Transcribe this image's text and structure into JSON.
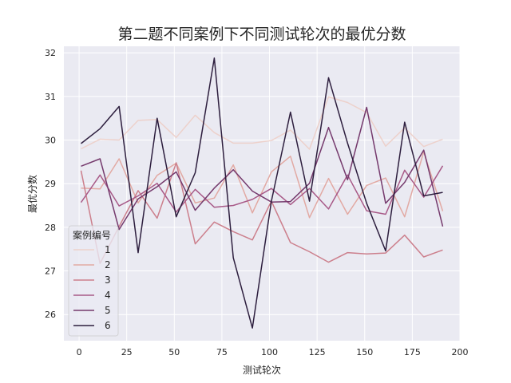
{
  "chart_data": {
    "type": "line",
    "title": "第二题不同案例下不同测试轮次的最优分数",
    "xlabel": "测试轮次",
    "ylabel": "最优分数",
    "xlim": [
      -8,
      200
    ],
    "ylim": [
      25.4,
      32.15
    ],
    "xticks": [
      0,
      25,
      50,
      75,
      100,
      125,
      150,
      175,
      200
    ],
    "yticks": [
      26,
      27,
      28,
      29,
      30,
      31,
      32
    ],
    "grid": true,
    "legend": {
      "title": "案例编号",
      "placement": "lower-left"
    },
    "x": [
      1,
      11,
      21,
      31,
      41,
      51,
      61,
      71,
      81,
      91,
      101,
      111,
      121,
      131,
      141,
      151,
      161,
      171,
      181,
      191
    ],
    "series": [
      {
        "name": "1",
        "color": "#edd1cb",
        "values": [
          29.8,
          30.02,
          30.0,
          30.45,
          30.47,
          30.06,
          30.57,
          30.17,
          29.93,
          29.93,
          29.99,
          30.23,
          29.79,
          30.99,
          30.86,
          30.63,
          29.86,
          30.28,
          29.85,
          30.02
        ]
      },
      {
        "name": "2",
        "color": "#e2a9a3",
        "values": [
          28.9,
          28.88,
          29.57,
          28.56,
          29.19,
          29.47,
          28.56,
          28.67,
          29.43,
          28.33,
          29.27,
          29.63,
          28.22,
          29.12,
          28.3,
          28.96,
          29.13,
          28.24,
          29.73,
          28.37
        ]
      },
      {
        "name": "3",
        "color": "#cc7f8c",
        "values": [
          29.3,
          27.17,
          28.02,
          28.84,
          28.21,
          29.48,
          27.62,
          28.12,
          27.9,
          27.71,
          28.6,
          27.65,
          27.44,
          27.2,
          27.42,
          27.39,
          27.41,
          27.82,
          27.32,
          27.48
        ]
      },
      {
        "name": "4",
        "color": "#a85a88",
        "values": [
          28.57,
          29.2,
          28.49,
          28.72,
          29.01,
          28.35,
          28.87,
          28.46,
          28.5,
          28.64,
          28.89,
          28.52,
          28.89,
          28.42,
          29.2,
          28.38,
          28.3,
          29.31,
          28.69,
          29.41
        ]
      },
      {
        "name": "5",
        "color": "#753a6d",
        "values": [
          29.4,
          29.57,
          27.95,
          28.65,
          28.93,
          29.27,
          28.39,
          28.9,
          29.32,
          28.83,
          28.58,
          28.59,
          29.01,
          30.29,
          29.09,
          30.75,
          28.55,
          29.03,
          29.77,
          28.02
        ]
      },
      {
        "name": "6",
        "color": "#2d1e3e",
        "values": [
          29.92,
          30.26,
          30.77,
          27.42,
          30.5,
          28.24,
          29.25,
          31.88,
          27.3,
          25.69,
          28.6,
          30.64,
          28.6,
          31.43,
          29.93,
          28.55,
          27.46,
          30.41,
          28.72,
          28.8
        ]
      }
    ]
  }
}
